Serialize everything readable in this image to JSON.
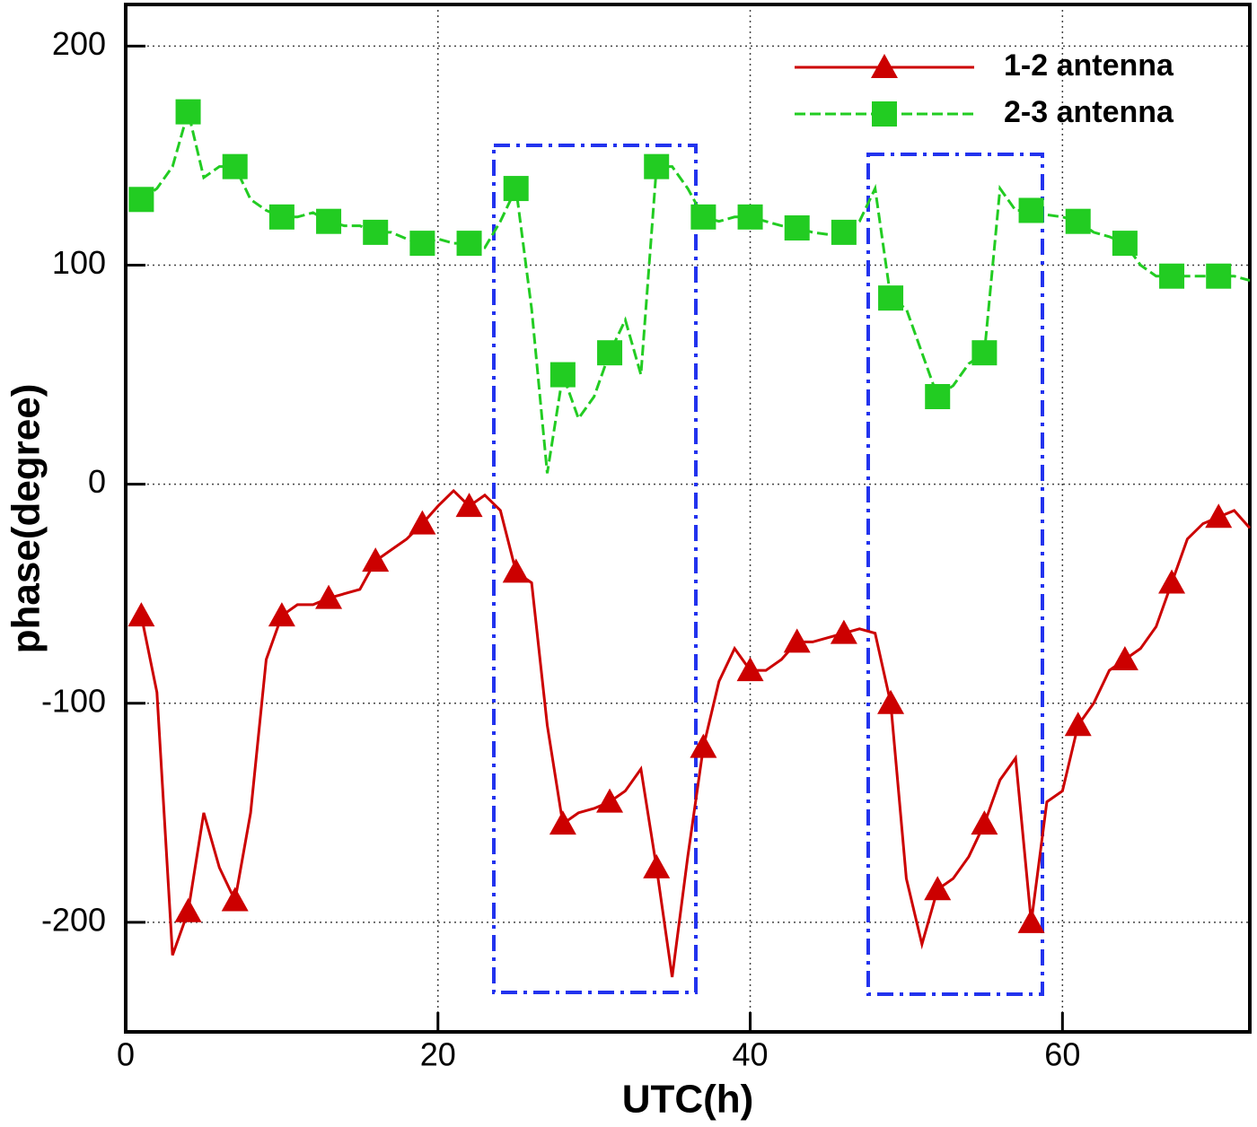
{
  "chart_data": {
    "type": "line",
    "xlabel": "UTC(h)",
    "ylabel": "phase(degree)",
    "x": [
      1,
      2,
      3,
      4,
      5,
      6,
      7,
      8,
      9,
      10,
      11,
      12,
      13,
      14,
      15,
      16,
      17,
      18,
      19,
      20,
      21,
      22,
      23,
      24,
      25,
      26,
      27,
      28,
      29,
      30,
      31,
      32,
      33,
      34,
      35,
      36,
      37,
      38,
      39,
      40,
      41,
      42,
      43,
      44,
      45,
      46,
      47,
      48,
      49,
      50,
      51,
      52,
      53,
      54,
      55,
      56,
      57,
      58,
      59,
      60,
      61,
      62,
      63,
      64,
      65,
      66,
      67,
      68,
      69,
      70,
      71,
      72
    ],
    "series": [
      {
        "name": "1-2 antenna",
        "color": "#cc0000",
        "marker": "triangle",
        "line_style": "solid",
        "values": [
          -60,
          -95,
          -215,
          -195,
          -150,
          -175,
          -190,
          -150,
          -80,
          -60,
          -55,
          -55,
          -52,
          -50,
          -48,
          -35,
          -30,
          -25,
          -18,
          -10,
          -3,
          -10,
          -5,
          -12,
          -40,
          -45,
          -110,
          -155,
          -150,
          -148,
          -145,
          -140,
          -130,
          -175,
          -225,
          -170,
          -120,
          -90,
          -75,
          -85,
          -85,
          -80,
          -72,
          -72,
          -70,
          -68,
          -66,
          -68,
          -100,
          -180,
          -210,
          -185,
          -180,
          -170,
          -155,
          -135,
          -125,
          -200,
          -145,
          -140,
          -110,
          -100,
          -85,
          -80,
          -75,
          -65,
          -45,
          -25,
          -18,
          -15,
          -12,
          -20
        ]
      },
      {
        "name": "2-3 antenna",
        "color": "#22cc22",
        "marker": "square",
        "line_style": "dashed",
        "values": [
          130,
          135,
          145,
          170,
          140,
          145,
          145,
          130,
          125,
          122,
          122,
          124,
          120,
          118,
          118,
          115,
          115,
          112,
          110,
          112,
          110,
          110,
          108,
          120,
          135,
          80,
          5,
          50,
          30,
          40,
          60,
          75,
          50,
          145,
          145,
          135,
          122,
          120,
          122,
          122,
          120,
          118,
          117,
          115,
          114,
          115,
          120,
          135,
          85,
          80,
          60,
          40,
          45,
          55,
          60,
          135,
          125,
          125,
          123,
          122,
          120,
          115,
          113,
          110,
          100,
          95,
          95,
          95,
          95,
          95,
          95,
          93
        ]
      }
    ],
    "xlim": [
      0,
      72
    ],
    "ylim": [
      -250,
      219
    ],
    "xticks": [
      0,
      20,
      40,
      60
    ],
    "yticks": [
      -200,
      -100,
      0,
      100,
      200
    ],
    "grid": true,
    "legend": "upper right"
  }
}
